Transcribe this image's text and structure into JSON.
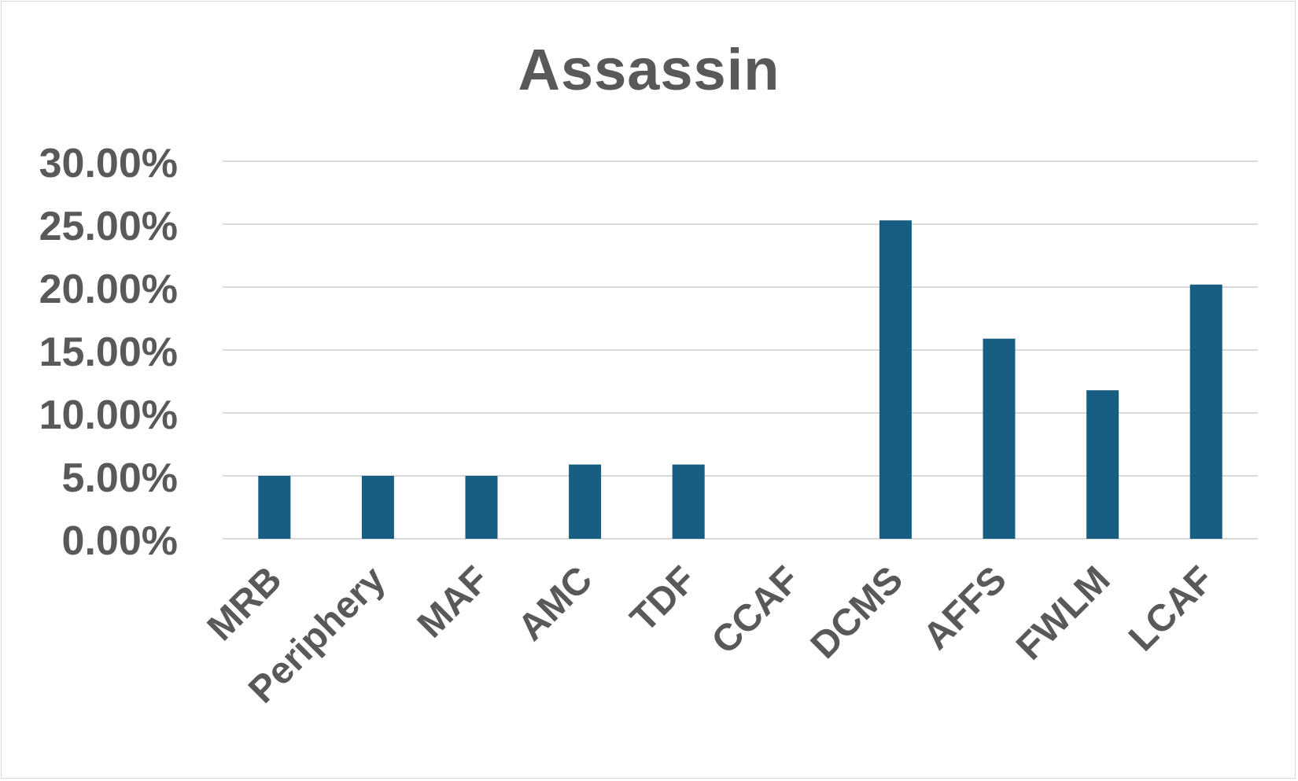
{
  "chart_data": {
    "type": "bar",
    "title": "Assassin",
    "xlabel": "",
    "ylabel": "",
    "categories": [
      "MRB",
      "Periphery",
      "MAF",
      "AMC",
      "TDF",
      "CCAF",
      "DCMS",
      "AFFS",
      "FWLM",
      "LCAF"
    ],
    "series": [
      {
        "values": [
          0.05,
          0.05,
          0.05,
          0.059,
          0.059,
          0.0,
          0.253,
          0.159,
          0.118,
          0.202
        ]
      }
    ],
    "ylim": [
      0,
      0.3
    ],
    "yticks": [
      0,
      0.05,
      0.1,
      0.15,
      0.2,
      0.25,
      0.3
    ],
    "ytick_labels": [
      "0.00%",
      "5.00%",
      "10.00%",
      "15.00%",
      "20.00%",
      "25.00%",
      "30.00%"
    ],
    "grid": true,
    "legend": "none",
    "colors": {
      "bar": "#175e82",
      "grid": "#d9d9d9",
      "text": "#595959"
    }
  }
}
